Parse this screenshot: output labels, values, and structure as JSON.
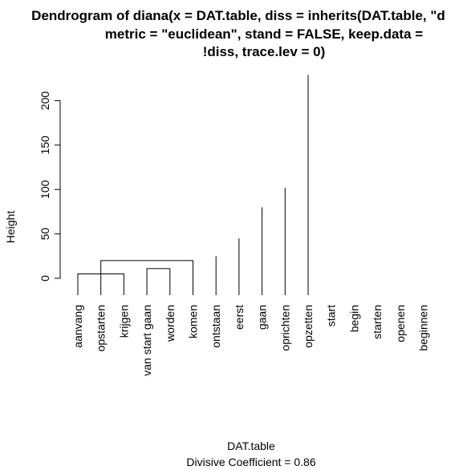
{
  "chart_data": {
    "type": "dendrogram",
    "title_lines": [
      "Dendrogram of  diana(x = DAT.table, diss = inherits(DAT.table, \"d",
      "metric = \"euclidean\", stand = FALSE, keep.data =",
      "!diss, trace.lev = 0)"
    ],
    "xlabel": "DAT.table",
    "sub": "Divisive Coefficient =  0.86",
    "ylabel": "Height",
    "yticks": [
      0,
      50,
      100,
      150,
      200
    ],
    "ylim": [
      0,
      228
    ],
    "leaves": [
      "aanvang",
      "opstarten",
      "krijgen",
      "van start gaan",
      "worden",
      "komen",
      "ontstaan",
      "eerst",
      "gaan",
      "oprichten",
      "opzetten",
      "start",
      "begin",
      "starten",
      "openen",
      "beginnen"
    ],
    "merges": [
      [
        1,
        2,
        4
      ],
      [
        3,
        4,
        3
      ],
      [
        6,
        7,
        4
      ],
      [
        8,
        9,
        5
      ],
      [
        10,
        11,
        5
      ],
      [
        -1,
        -3,
        5
      ],
      [
        -5,
        -4,
        11
      ],
      [
        -2,
        -6,
        20
      ],
      [
        -7,
        12,
        25
      ],
      [
        -8,
        13,
        45
      ],
      [
        -9,
        14,
        80
      ],
      [
        -10,
        15,
        102
      ],
      [
        -11,
        16,
        229
      ]
    ]
  }
}
